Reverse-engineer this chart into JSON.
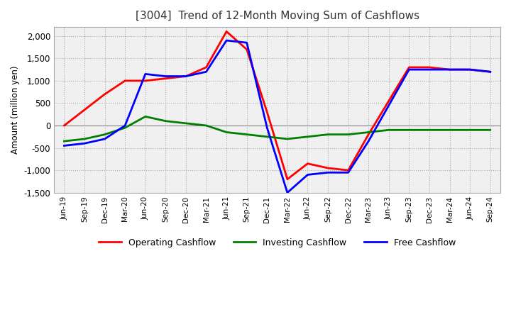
{
  "title": "[3004]  Trend of 12-Month Moving Sum of Cashflows",
  "ylabel": "Amount (million yen)",
  "background_color": "#ffffff",
  "plot_bg_color": "#f0f0f0",
  "grid_color": "#aaaaaa",
  "x_labels": [
    "Jun-19",
    "Sep-19",
    "Dec-19",
    "Mar-20",
    "Jun-20",
    "Sep-20",
    "Dec-20",
    "Mar-21",
    "Jun-21",
    "Sep-21",
    "Dec-21",
    "Mar-22",
    "Jun-22",
    "Sep-22",
    "Dec-22",
    "Mar-23",
    "Jun-23",
    "Sep-23",
    "Dec-23",
    "Mar-24",
    "Jun-24",
    "Sep-24"
  ],
  "operating_cashflow": [
    0,
    350,
    700,
    1000,
    1000,
    1050,
    1100,
    1300,
    2100,
    1700,
    300,
    -1200,
    -850,
    -950,
    -1000,
    -200,
    550,
    1300,
    1300,
    1250,
    1250,
    1200
  ],
  "investing_cashflow": [
    -350,
    -300,
    -200,
    -50,
    200,
    100,
    50,
    0,
    -150,
    -200,
    -250,
    -300,
    -250,
    -200,
    -200,
    -150,
    -100,
    -100,
    -100,
    -100,
    -100,
    -100
  ],
  "free_cashflow": [
    -450,
    -400,
    -300,
    0,
    1150,
    1100,
    1100,
    1200,
    1900,
    1850,
    -50,
    -1500,
    -1100,
    -1050,
    -1050,
    -350,
    450,
    1250,
    1250,
    1250,
    1250,
    1200
  ],
  "ylim": [
    -1500,
    2200
  ],
  "yticks": [
    -1500,
    -1000,
    -500,
    0,
    500,
    1000,
    1500,
    2000
  ],
  "operating_color": "#ff0000",
  "investing_color": "#008000",
  "free_color": "#0000ff",
  "line_width": 2.0
}
